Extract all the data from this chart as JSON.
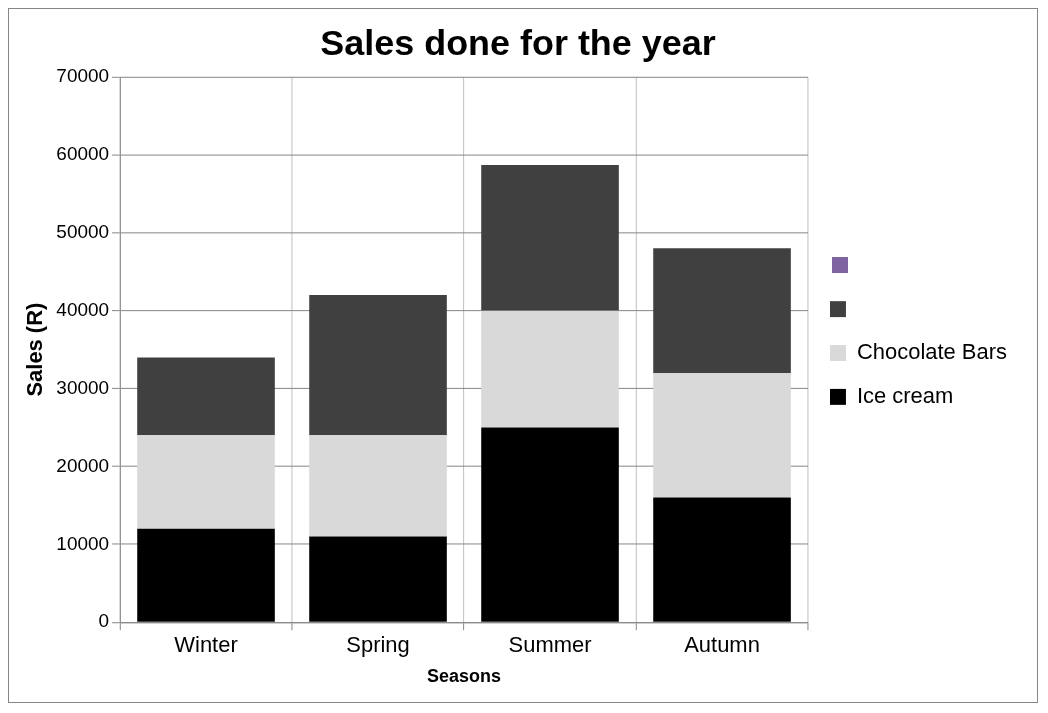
{
  "chart_data": {
    "type": "bar",
    "title": "Sales done for the year",
    "xlabel": "Seasons",
    "ylabel": "Sales (R)",
    "categories": [
      "Winter",
      "Spring",
      "Summer",
      "Autumn"
    ],
    "stacked": true,
    "series": [
      {
        "name": "Ice cream",
        "color": "#000000",
        "values": [
          12000,
          11000,
          25000,
          16000
        ]
      },
      {
        "name": "Chocolate Bars",
        "color": "#d9d9d9",
        "values": [
          12000,
          13000,
          15000,
          16000
        ]
      },
      {
        "color": "#404040",
        "values": [
          10000,
          18000,
          18700,
          16000
        ]
      }
    ],
    "ylim": [
      0,
      70000
    ],
    "yticks": [
      0,
      10000,
      20000,
      30000,
      40000,
      50000,
      60000,
      70000
    ],
    "grid": true,
    "legend": "right"
  }
}
